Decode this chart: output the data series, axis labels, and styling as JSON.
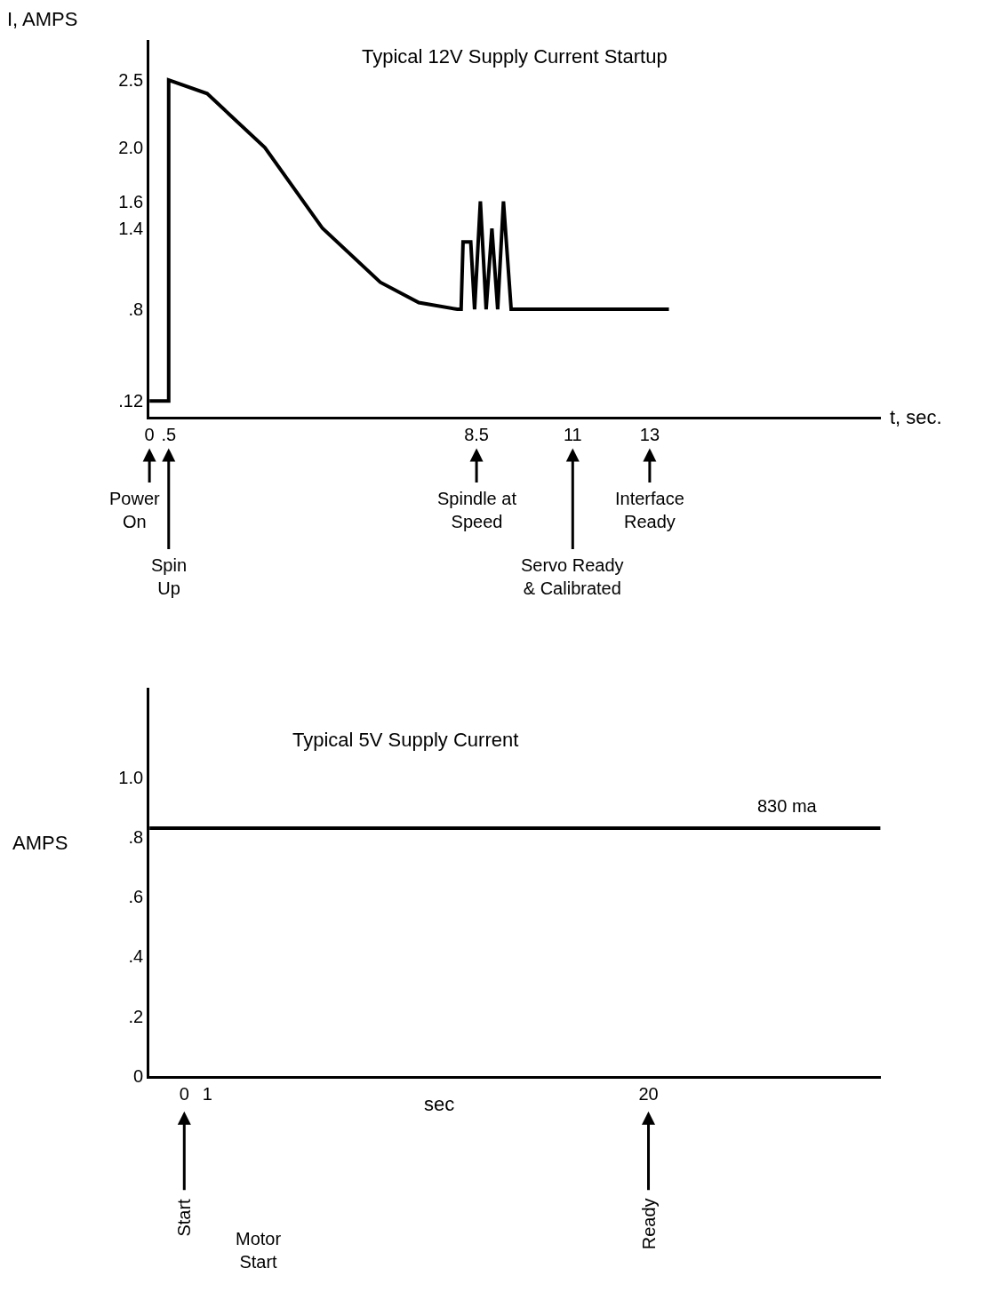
{
  "chart_data": [
    {
      "type": "line",
      "title": "Typical 12V Supply Current Startup",
      "xlabel": "t, sec.",
      "ylabel": "I, AMPS",
      "xlim": [
        0,
        19
      ],
      "ylim": [
        0,
        2.8
      ],
      "xticks": [
        0,
        {
          "value": 0.5,
          "label": ".5"
        },
        8.5,
        11,
        13
      ],
      "yticks": [
        {
          "value": 0.12,
          "label": ".12"
        },
        {
          "value": 0.8,
          "label": ".8"
        },
        1.4,
        1.6,
        {
          "value": 2.0,
          "label": "2.0"
        },
        2.5
      ],
      "series": [
        {
          "color": "#000000",
          "x": [
            0,
            0.5,
            0.5,
            1.5,
            3,
            4.5,
            6,
            7,
            8,
            8.1,
            8.15,
            8.35,
            8.45,
            8.6,
            8.75,
            8.9,
            9.05,
            9.2,
            9.4,
            13.5
          ],
          "values": [
            0.12,
            0.12,
            2.5,
            2.4,
            2.0,
            1.4,
            1.0,
            0.85,
            0.8,
            0.8,
            1.3,
            1.3,
            0.8,
            1.6,
            0.8,
            1.4,
            0.8,
            1.6,
            0.8,
            0.8
          ]
        }
      ],
      "annotations": [
        "Power\nOn",
        "Spin\nUp",
        "Spindle at\nSpeed",
        "Servo Ready\n& Calibrated",
        "Interface\nReady"
      ],
      "marker": "none",
      "line_style": "solid"
    },
    {
      "type": "line",
      "title": "Typical 5V Supply Current",
      "xlabel": "sec",
      "ylabel": "AMPS",
      "xlim": [
        -1.5,
        30
      ],
      "ylim": [
        0,
        1.3
      ],
      "xticks": [
        0,
        1,
        20
      ],
      "yticks": [
        0,
        {
          "value": 0.2,
          "label": ".2"
        },
        {
          "value": 0.4,
          "label": ".4"
        },
        {
          "value": 0.6,
          "label": ".6"
        },
        {
          "value": 0.8,
          "label": ".8"
        },
        {
          "value": 1.0,
          "label": "1.0"
        }
      ],
      "series": [
        {
          "color": "#000000",
          "x": [
            -1.5,
            30
          ],
          "values": [
            0.83,
            0.83
          ]
        }
      ],
      "annotations": [
        "Start",
        "Motor\nStart",
        "Ready",
        {
          "text": "830 ma",
          "x": 26,
          "y": 0.83
        }
      ],
      "marker": "none",
      "line_style": "solid"
    }
  ]
}
